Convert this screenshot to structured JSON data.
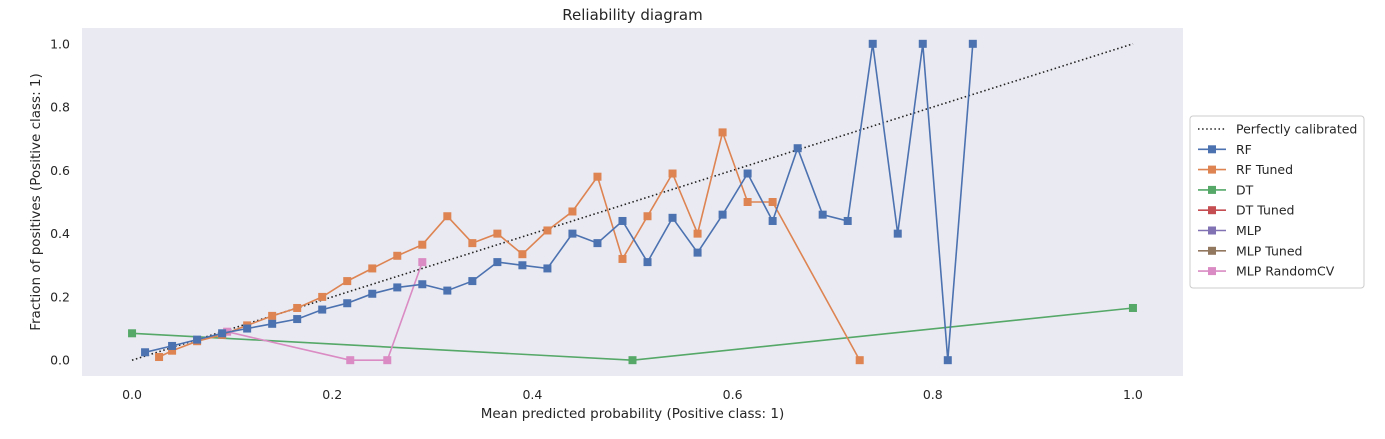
{
  "chart_data": {
    "type": "line",
    "title": "Reliability diagram",
    "xlabel": "Mean predicted probability (Positive class: 1)",
    "ylabel": "Fraction of positives (Positive class: 1)",
    "xlim": [
      -0.05,
      1.05
    ],
    "ylim": [
      -0.05,
      1.05
    ],
    "xticks": [
      0.0,
      0.2,
      0.4,
      0.6,
      0.8,
      1.0
    ],
    "xtick_labels": [
      "0.0",
      "0.2",
      "0.4",
      "0.6",
      "0.8",
      "1.0"
    ],
    "yticks": [
      0.0,
      0.2,
      0.4,
      0.6,
      0.8,
      1.0
    ],
    "ytick_labels": [
      "0.0",
      "0.2",
      "0.4",
      "0.6",
      "0.8",
      "1.0"
    ],
    "grid": false,
    "background": "#eaeaf2",
    "legend_position": "right",
    "series": [
      {
        "name": "Perfectly calibrated",
        "style": "dotted",
        "marker": "none",
        "color": "#222222",
        "x": [
          0.0,
          1.0
        ],
        "y": [
          0.0,
          1.0
        ]
      },
      {
        "name": "RF",
        "marker": "square",
        "color": "#4c72b0",
        "x": [
          0.013,
          0.04,
          0.065,
          0.09,
          0.115,
          0.14,
          0.165,
          0.19,
          0.215,
          0.24,
          0.265,
          0.29,
          0.315,
          0.34,
          0.365,
          0.39,
          0.415,
          0.44,
          0.465,
          0.49,
          0.515,
          0.54,
          0.565,
          0.59,
          0.615,
          0.64,
          0.665,
          0.69,
          0.715,
          0.74,
          0.765,
          0.79,
          0.815,
          0.84
        ],
        "y": [
          0.025,
          0.045,
          0.065,
          0.085,
          0.1,
          0.115,
          0.13,
          0.16,
          0.18,
          0.21,
          0.23,
          0.24,
          0.22,
          0.25,
          0.31,
          0.3,
          0.29,
          0.4,
          0.37,
          0.44,
          0.31,
          0.45,
          0.34,
          0.46,
          0.59,
          0.44,
          0.67,
          0.46,
          0.44,
          1.0,
          0.4,
          1.0,
          0.0,
          1.0
        ]
      },
      {
        "name": "RF Tuned",
        "marker": "square",
        "color": "#dd8452",
        "x": [
          0.027,
          0.04,
          0.065,
          0.09,
          0.115,
          0.14,
          0.165,
          0.19,
          0.215,
          0.24,
          0.265,
          0.29,
          0.315,
          0.34,
          0.365,
          0.39,
          0.415,
          0.44,
          0.465,
          0.49,
          0.515,
          0.54,
          0.565,
          0.59,
          0.615,
          0.64,
          0.727
        ],
        "y": [
          0.01,
          0.03,
          0.06,
          0.08,
          0.11,
          0.14,
          0.165,
          0.2,
          0.25,
          0.29,
          0.33,
          0.365,
          0.455,
          0.37,
          0.4,
          0.335,
          0.41,
          0.47,
          0.58,
          0.32,
          0.455,
          0.59,
          0.4,
          0.72,
          0.5,
          0.5,
          0.0
        ]
      },
      {
        "name": "DT",
        "marker": "square",
        "color": "#55a868",
        "x": [
          0.0,
          0.5,
          1.0
        ],
        "y": [
          0.085,
          0.0,
          0.165
        ]
      },
      {
        "name": "DT Tuned",
        "marker": "square",
        "color": "#c44e52",
        "x": [],
        "y": []
      },
      {
        "name": "MLP",
        "marker": "square",
        "color": "#8172b3",
        "x": [],
        "y": []
      },
      {
        "name": "MLP Tuned",
        "marker": "square",
        "color": "#937860",
        "x": [],
        "y": []
      },
      {
        "name": "MLP RandomCV",
        "marker": "square",
        "color": "#da8bc3",
        "x": [
          0.095,
          0.218,
          0.255,
          0.29
        ],
        "y": [
          0.09,
          0.0,
          0.0,
          0.31
        ]
      }
    ]
  }
}
